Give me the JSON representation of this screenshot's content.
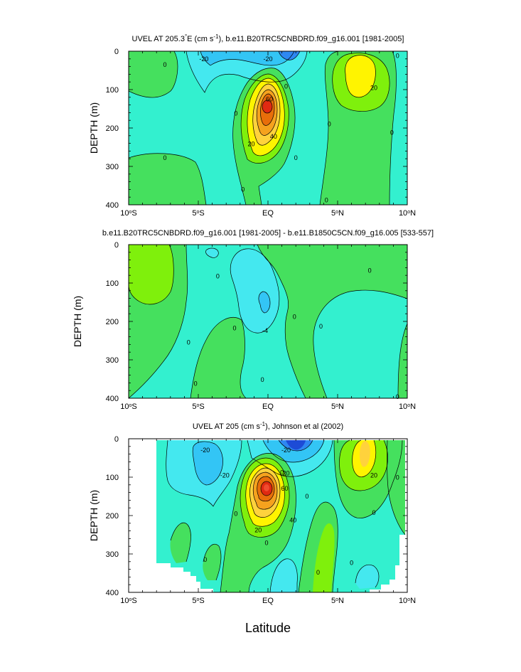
{
  "chart_data": [
    {
      "type": "heatmap",
      "title_parts": [
        "UVEL AT 205.3",
        "°",
        "E (cm s",
        "-1",
        "), b.e11.B20TRC5CNBDRD.f09_g16.001 [1981-2005]"
      ],
      "ylabel": "DEPTH (m)",
      "xlim": [
        -10,
        10
      ],
      "ylim": [
        0,
        400
      ],
      "xticks": [
        {
          "v": -10,
          "label": "10",
          "sup": "o",
          "suf": "S"
        },
        {
          "v": -5,
          "label": "5",
          "sup": "o",
          "suf": "S"
        },
        {
          "v": 0,
          "label": "EQ",
          "sup": "",
          "suf": ""
        },
        {
          "v": 5,
          "label": "5",
          "sup": "o",
          "suf": "N"
        },
        {
          "v": 10,
          "label": "10",
          "sup": "o",
          "suf": "N"
        }
      ],
      "yticks": [
        0,
        100,
        200,
        300,
        400
      ],
      "contour_labels": [
        {
          "text": "-20",
          "lon": -4.6,
          "depth": 20
        },
        {
          "text": "-20",
          "lon": 0.0,
          "depth": 20
        },
        {
          "text": "0",
          "lon": -7.4,
          "depth": 35
        },
        {
          "text": "0",
          "lon": 1.3,
          "depth": 92
        },
        {
          "text": "0",
          "lon": -2.3,
          "depth": 162
        },
        {
          "text": "0",
          "lon": 4.4,
          "depth": 190
        },
        {
          "text": "0",
          "lon": -7.4,
          "depth": 278
        },
        {
          "text": "0",
          "lon": 2.0,
          "depth": 278
        },
        {
          "text": "0",
          "lon": -1.8,
          "depth": 360
        },
        {
          "text": "0",
          "lon": 4.2,
          "depth": 388
        },
        {
          "text": "0",
          "lon": 9.3,
          "depth": 12
        },
        {
          "text": "0",
          "lon": 8.9,
          "depth": 212
        },
        {
          "text": "20",
          "lon": 7.6,
          "depth": 95
        },
        {
          "text": "20",
          "lon": -1.2,
          "depth": 242
        },
        {
          "text": "40",
          "lon": 0.4,
          "depth": 222
        },
        {
          "text": "60",
          "lon": 0.1,
          "depth": 125
        }
      ]
    },
    {
      "type": "heatmap",
      "title_parts": [
        "b.e11.B20TRC5CNBDRD.f09_g16.001 [1981-2005] - b.e11.B1850C5CN.f09_g16.005 [533-557]"
      ],
      "ylabel": "DEPTH (m)",
      "xlim": [
        -10,
        10
      ],
      "ylim": [
        0,
        400
      ],
      "xticks": [
        {
          "v": -10,
          "label": "10",
          "sup": "o",
          "suf": "S"
        },
        {
          "v": -5,
          "label": "5",
          "sup": "o",
          "suf": "S"
        },
        {
          "v": 0,
          "label": "EQ",
          "sup": "",
          "suf": ""
        },
        {
          "v": 5,
          "label": "5",
          "sup": "o",
          "suf": "N"
        },
        {
          "v": 10,
          "label": "10",
          "sup": "o",
          "suf": "N"
        }
      ],
      "yticks": [
        0,
        100,
        200,
        300,
        400
      ],
      "contour_labels": [
        {
          "text": "0",
          "lon": -3.6,
          "depth": 82
        },
        {
          "text": "0",
          "lon": 7.3,
          "depth": 68
        },
        {
          "text": "0",
          "lon": 1.9,
          "depth": 188
        },
        {
          "text": "0",
          "lon": 3.8,
          "depth": 213
        },
        {
          "text": "0",
          "lon": -2.4,
          "depth": 218
        },
        {
          "text": "0",
          "lon": -5.7,
          "depth": 255
        },
        {
          "text": "0",
          "lon": -0.4,
          "depth": 352
        },
        {
          "text": "0",
          "lon": -5.2,
          "depth": 362
        },
        {
          "text": "0",
          "lon": 9.3,
          "depth": 396
        },
        {
          "text": "-4",
          "lon": -0.2,
          "depth": 224
        }
      ]
    },
    {
      "type": "heatmap",
      "title_parts": [
        "UVEL AT 205 (cm s",
        "-1",
        "), Johnson et al (2002)"
      ],
      "ylabel": "DEPTH (m)",
      "xlabel": "Latitude",
      "xlim": [
        -10,
        10
      ],
      "ylim": [
        0,
        400
      ],
      "xticks": [
        {
          "v": -10,
          "label": "10",
          "sup": "o",
          "suf": "S"
        },
        {
          "v": -5,
          "label": "5",
          "sup": "o",
          "suf": "S"
        },
        {
          "v": 0,
          "label": "EQ",
          "sup": "",
          "suf": ""
        },
        {
          "v": 5,
          "label": "5",
          "sup": "o",
          "suf": "N"
        },
        {
          "v": 10,
          "label": "10",
          "sup": "o",
          "suf": "N"
        }
      ],
      "yticks": [
        0,
        100,
        200,
        300,
        400
      ],
      "contour_labels": [
        {
          "text": "-20",
          "lon": -4.5,
          "depth": 30
        },
        {
          "text": "-20",
          "lon": -3.1,
          "depth": 95
        },
        {
          "text": "-20",
          "lon": 1.3,
          "depth": 30
        },
        {
          "text": "0",
          "lon": 1.0,
          "depth": 88
        },
        {
          "text": "0",
          "lon": -4.5,
          "depth": 315
        },
        {
          "text": "0",
          "lon": -2.3,
          "depth": 195
        },
        {
          "text": "0",
          "lon": -0.1,
          "depth": 271
        },
        {
          "text": "0",
          "lon": 2.8,
          "depth": 150
        },
        {
          "text": "0",
          "lon": 9.3,
          "depth": 101
        },
        {
          "text": "0",
          "lon": 7.6,
          "depth": 193
        },
        {
          "text": "0",
          "lon": 6.0,
          "depth": 323
        },
        {
          "text": "0",
          "lon": 3.6,
          "depth": 348
        },
        {
          "text": "20",
          "lon": 7.6,
          "depth": 95
        },
        {
          "text": "20",
          "lon": -0.7,
          "depth": 238
        },
        {
          "text": "40",
          "lon": 1.8,
          "depth": 212
        },
        {
          "text": "60",
          "lon": 1.2,
          "depth": 130
        },
        {
          "text": "20",
          "lon": 1.3,
          "depth": 90
        }
      ]
    }
  ],
  "colors": {
    "c_m40": "#1d4bd6",
    "c_m30": "#2e88f2",
    "c_m20": "#33c5f5",
    "c_m10": "#44e8ef",
    "c_0": "#33f0cf",
    "c_p10": "#45e05e",
    "c_p20": "#7ff00c",
    "c_p30": "#fff400",
    "c_p40": "#ffd23c",
    "c_p50": "#f5a21e",
    "c_p60": "#e86e0a",
    "c_p70": "#e02a12",
    "c_p80": "#f04c30",
    "frame": "#000000"
  }
}
